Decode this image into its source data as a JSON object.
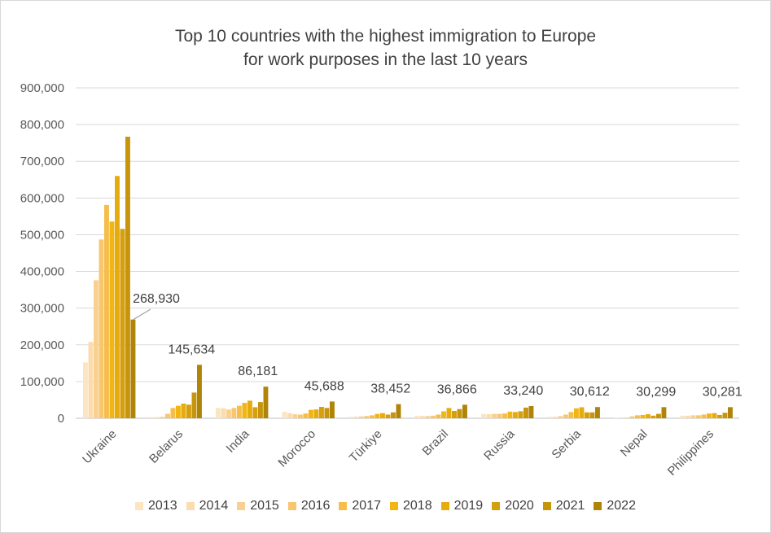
{
  "chart_data": {
    "type": "bar",
    "title": "Top 10 countries with the highest immigration to Europe",
    "subtitle": "for work purposes in the last 10 years",
    "xlabel": "",
    "ylabel": "",
    "ylim": [
      0,
      900000
    ],
    "yticks": [
      0,
      100000,
      200000,
      300000,
      400000,
      500000,
      600000,
      700000,
      800000,
      900000
    ],
    "ytick_labels": [
      "0",
      "100,000",
      "200,000",
      "300,000",
      "400,000",
      "500,000",
      "600,000",
      "700,000",
      "800,000",
      "900,000"
    ],
    "grid": true,
    "legend_position": "bottom",
    "categories": [
      "Ukraine",
      "Belarus",
      "India",
      "Morocco",
      "Türkiye",
      "Brazil",
      "Russia",
      "Serbia",
      "Nepal",
      "Philippines"
    ],
    "series": [
      {
        "name": "2013",
        "color": "#fbe5c2",
        "values": [
          152000,
          3000,
          28000,
          18000,
          4000,
          7000,
          12000,
          4000,
          1000,
          7000
        ]
      },
      {
        "name": "2014",
        "color": "#fbdcae",
        "values": [
          208000,
          3000,
          27000,
          14000,
          4000,
          6000,
          11000,
          4000,
          2000,
          7000
        ]
      },
      {
        "name": "2015",
        "color": "#f9d08f",
        "values": [
          376000,
          4000,
          24000,
          11000,
          5000,
          6000,
          12000,
          6000,
          2000,
          8000
        ]
      },
      {
        "name": "2016",
        "color": "#f8c66f",
        "values": [
          487000,
          12000,
          28000,
          10000,
          6000,
          7000,
          12000,
          10000,
          5000,
          8000
        ]
      },
      {
        "name": "2017",
        "color": "#f6bd4b",
        "values": [
          581000,
          28000,
          34000,
          13000,
          8000,
          10000,
          13000,
          17000,
          8000,
          10000
        ]
      },
      {
        "name": "2018",
        "color": "#f2b614",
        "values": [
          536000,
          34000,
          42000,
          23000,
          12000,
          19000,
          18000,
          27000,
          9000,
          13000
        ]
      },
      {
        "name": "2019",
        "color": "#e6ac0e",
        "values": [
          660000,
          40000,
          48000,
          24000,
          14000,
          28000,
          17000,
          30000,
          11000,
          14000
        ]
      },
      {
        "name": "2020",
        "color": "#d5a00d",
        "values": [
          516000,
          37000,
          30000,
          31000,
          10000,
          20000,
          19000,
          16000,
          7000,
          9000
        ]
      },
      {
        "name": "2021",
        "color": "#c6950c",
        "values": [
          767000,
          70000,
          44000,
          28000,
          16000,
          25000,
          29000,
          16000,
          12000,
          15000
        ]
      },
      {
        "name": "2022",
        "color": "#b08409",
        "values": [
          268930,
          145634,
          86181,
          45688,
          38452,
          36866,
          33240,
          30612,
          30299,
          30281
        ]
      }
    ],
    "data_labels": {
      "series": "2022",
      "labels": [
        "268,930",
        "145,634",
        "86,181",
        "45,688",
        "38,452",
        "36,866",
        "33,240",
        "30,612",
        "30,299",
        "30,281"
      ]
    },
    "legend": [
      "2013",
      "2014",
      "2015",
      "2016",
      "2017",
      "2018",
      "2019",
      "2020",
      "2021",
      "2022"
    ]
  }
}
